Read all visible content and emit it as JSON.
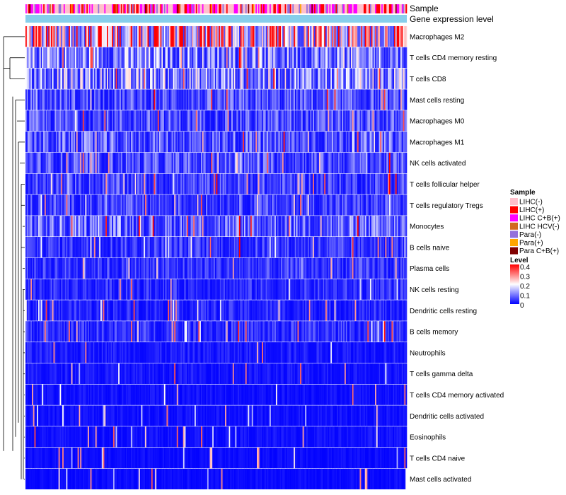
{
  "chart_data": {
    "type": "heatmap",
    "annotation_tracks": [
      "Sample",
      "Gene expression level"
    ],
    "rows": [
      "Macrophages M2",
      "T cells CD4 memory resting",
      "T cells CD8",
      "Mast cells resting",
      "Macrophages M0",
      "Macrophages M1",
      "NK cells activated",
      "T cells follicular helper",
      "T cells regulatory  Tregs",
      "Monocytes",
      "B cells naive",
      "Plasma cells",
      "NK cells resting",
      "Dendritic cells resting",
      "B cells memory",
      "Neutrophils",
      "T cells gamma delta",
      "T cells CD4 memory activated",
      "Dendritic cells activated",
      "Eosinophils",
      "T cells CD4 naive",
      "Mast cells activated"
    ],
    "row_mean_levels": [
      0.28,
      0.12,
      0.13,
      0.07,
      0.07,
      0.08,
      0.07,
      0.06,
      0.06,
      0.09,
      0.05,
      0.05,
      0.04,
      0.035,
      0.045,
      0.025,
      0.02,
      0.015,
      0.015,
      0.015,
      0.01,
      0.01
    ],
    "sample_groups": [
      {
        "name": "LIHC(-)",
        "color": "#FFC0CB"
      },
      {
        "name": "LIHC(+)",
        "color": "#FF0000"
      },
      {
        "name": "LIHC C+B(+)",
        "color": "#FF00FF"
      },
      {
        "name": "LIHC HCV(-)",
        "color": "#D2691E"
      },
      {
        "name": "Para(-)",
        "color": "#9370DB"
      },
      {
        "name": "Para(+)",
        "color": "#FFA500"
      },
      {
        "name": "Para C+B(+)",
        "color": "#800000"
      }
    ],
    "gene_expression_color": "#87CEEB",
    "level_scale": {
      "title": "Level",
      "ticks": [
        "0.4",
        "0.3",
        "0.2",
        "0.1",
        "0"
      ],
      "range": [
        0,
        0.4
      ],
      "colors": {
        "low": "#0000FF",
        "mid": "#FFFFFF",
        "high": "#FF0000"
      }
    },
    "legend_titles": {
      "sample": "Sample",
      "level": "Level"
    },
    "n_columns": 300
  }
}
